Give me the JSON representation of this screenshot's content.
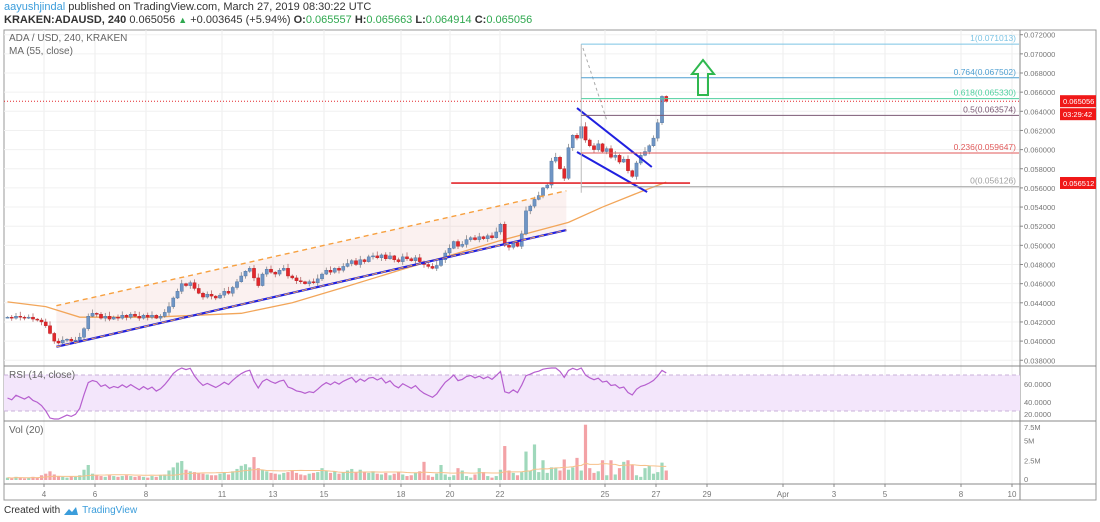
{
  "header": {
    "author": "aayushjindal",
    "published": "published on TradingView.com, March 27, 2019 08:30:22 UTC",
    "symbol": "KRAKEN:ADAUSD, 240",
    "last": "0.065056",
    "change": "+0.003645 (+5.94%)",
    "o_label": "O:",
    "o": "0.065557",
    "h_label": "H:",
    "h": "0.065663",
    "l_label": "L:",
    "l": "0.064914",
    "c_label": "C:",
    "c": "0.065056"
  },
  "legend": {
    "title": "ADA / USD, 240, KRAKEN",
    "ma": "MA (55, close)",
    "rsi": "RSI (14, close)",
    "vol": "Vol (20)"
  },
  "footer": {
    "created": "Created with",
    "brand": "TradingView"
  },
  "chart_data": {
    "type": "candlestick",
    "symbol": "ADA / USD",
    "interval": "240",
    "price_axis": {
      "range": [
        0.038,
        0.072
      ],
      "ticks": [
        "0.038000",
        "0.040000",
        "0.042000",
        "0.044000",
        "0.046000",
        "0.048000",
        "0.050000",
        "0.052000",
        "0.054000",
        "0.056000",
        "0.058000",
        "0.060000",
        "0.062000",
        "0.064000",
        "0.066000",
        "0.068000",
        "0.070000",
        "0.072000"
      ]
    },
    "time_axis": {
      "ticks": [
        "4",
        "6",
        "8",
        "11",
        "13",
        "15",
        "18",
        "20",
        "22",
        "25",
        "27",
        "29",
        "Apr",
        "3",
        "5",
        "8",
        "10"
      ]
    },
    "grid": true,
    "candles": {
      "interval": "4h",
      "close": [
        0.0425,
        0.0424,
        0.0426,
        0.0425,
        0.0424,
        0.0425,
        0.0423,
        0.0422,
        0.042,
        0.0416,
        0.0408,
        0.04,
        0.0398,
        0.0401,
        0.0402,
        0.04,
        0.0401,
        0.0404,
        0.0413,
        0.0426,
        0.0429,
        0.0428,
        0.0424,
        0.0426,
        0.0423,
        0.0425,
        0.0424,
        0.0427,
        0.0425,
        0.0428,
        0.0426,
        0.0424,
        0.0427,
        0.0425,
        0.0427,
        0.0424,
        0.0426,
        0.043,
        0.0436,
        0.0445,
        0.0452,
        0.046,
        0.0458,
        0.0461,
        0.0455,
        0.045,
        0.0446,
        0.0449,
        0.0447,
        0.0445,
        0.0448,
        0.0452,
        0.045,
        0.0456,
        0.0462,
        0.0468,
        0.0473,
        0.0476,
        0.0466,
        0.0458,
        0.047,
        0.0475,
        0.0472,
        0.047,
        0.0474,
        0.0476,
        0.0468,
        0.0466,
        0.0463,
        0.0462,
        0.046,
        0.0462,
        0.0461,
        0.0465,
        0.047,
        0.0474,
        0.0472,
        0.0476,
        0.0474,
        0.0478,
        0.0481,
        0.0484,
        0.048,
        0.0485,
        0.0483,
        0.0488,
        0.0489,
        0.0487,
        0.049,
        0.0486,
        0.0489,
        0.0485,
        0.0483,
        0.0488,
        0.0486,
        0.0484,
        0.0487,
        0.0483,
        0.048,
        0.0478,
        0.0476,
        0.0479,
        0.0485,
        0.0492,
        0.0497,
        0.0504,
        0.0499,
        0.0501,
        0.0506,
        0.0508,
        0.0506,
        0.0509,
        0.0507,
        0.051,
        0.0508,
        0.0514,
        0.0522,
        0.05,
        0.0498,
        0.0503,
        0.0499,
        0.0512,
        0.0536,
        0.0541,
        0.0548,
        0.0552,
        0.056,
        0.0563,
        0.0588,
        0.0592,
        0.058,
        0.057,
        0.0602,
        0.0615,
        0.0612,
        0.0624,
        0.061,
        0.0604,
        0.06,
        0.0606,
        0.0598,
        0.0601,
        0.0592,
        0.0594,
        0.0587,
        0.059,
        0.0578,
        0.0572,
        0.0586,
        0.0594,
        0.0598,
        0.0604,
        0.0612,
        0.0628,
        0.065557,
        0.065056
      ],
      "volume_M": [
        0.3,
        0.2,
        0.4,
        0.3,
        0.2,
        0.3,
        0.4,
        0.3,
        0.6,
        0.8,
        1.1,
        0.7,
        0.5,
        0.4,
        0.3,
        0.5,
        0.4,
        0.6,
        1.3,
        1.9,
        0.8,
        0.6,
        0.5,
        0.4,
        0.6,
        0.5,
        0.4,
        0.5,
        0.6,
        0.5,
        0.4,
        0.5,
        0.4,
        0.3,
        0.5,
        0.4,
        0.6,
        0.7,
        1.2,
        1.6,
        2.2,
        2.4,
        1.3,
        1.1,
        1.0,
        0.9,
        0.8,
        0.7,
        0.6,
        0.6,
        0.8,
        1.0,
        0.7,
        1.1,
        1.4,
        1.8,
        2.0,
        1.6,
        2.9,
        1.5,
        1.3,
        1.1,
        0.9,
        0.8,
        0.7,
        0.9,
        1.0,
        1.2,
        0.9,
        0.7,
        0.6,
        0.8,
        0.9,
        1.0,
        1.5,
        1.2,
        0.9,
        1.1,
        0.8,
        1.0,
        1.2,
        1.4,
        1.0,
        1.3,
        1.0,
        0.9,
        1.1,
        0.8,
        0.7,
        0.9,
        0.6,
        0.8,
        1.0,
        0.7,
        0.5,
        0.6,
        0.9,
        1.1,
        2.3,
        0.6,
        0.4,
        0.8,
        1.9,
        0.7,
        0.4,
        0.6,
        1.5,
        1.2,
        0.5,
        0.3,
        0.7,
        1.5,
        1.0,
        0.5,
        0.3,
        0.5,
        1.3,
        4.3,
        1.2,
        0.9,
        0.6,
        1.0,
        3.6,
        1.2,
        4.5,
        1.0,
        2.5,
        0.9,
        1.6,
        1.5,
        1.2,
        2.6,
        1.3,
        1.6,
        2.8,
        1.2,
        7.0,
        1.5,
        0.9,
        1.1,
        2.5,
        0.6,
        2.5,
        0.7,
        1.5,
        2.3,
        2.5,
        1.9,
        0.6,
        0.4,
        1.5,
        1.8,
        0.8,
        1.0,
        2.2,
        1.2
      ]
    },
    "last_candle": {
      "open": 0.065557,
      "high": 0.065663,
      "low": 0.064914,
      "close": 0.065056
    },
    "ma55": [
      [
        0,
        0.0441
      ],
      [
        9,
        0.0436
      ],
      [
        17,
        0.0425
      ],
      [
        34,
        0.0425
      ],
      [
        55,
        0.0429
      ],
      [
        67,
        0.044
      ],
      [
        79,
        0.0456
      ],
      [
        93,
        0.0475
      ],
      [
        116,
        0.0505
      ],
      [
        132,
        0.0524
      ],
      [
        140,
        0.054
      ],
      [
        149,
        0.0556
      ],
      [
        155,
        0.0566
      ]
    ],
    "rsi_axis": {
      "ticks": [
        "60.0000",
        "40.0000",
        "20.0000"
      ],
      "band": [
        30,
        70
      ]
    },
    "volume_axis": {
      "ticks": [
        "7.5M",
        "5M",
        "2.5M",
        "0"
      ]
    },
    "price_labels": {
      "last": "0.065056",
      "countdown": "03:29:42",
      "support": "0.056512"
    },
    "fib_levels": [
      {
        "label": "1(0.071013)",
        "price": 0.071013,
        "color": "#7cc4e4"
      },
      {
        "label": "0.764(0.067502)",
        "price": 0.067502,
        "color": "#4f9fd1"
      },
      {
        "label": "0.618(0.065330)",
        "price": 0.06533,
        "color": "#4fcf9f"
      },
      {
        "label": "0.5(0.063574)",
        "price": 0.063574,
        "color": "#7c5a74"
      },
      {
        "label": "0.236(0.059647)",
        "price": 0.059647,
        "color": "#e05a5a"
      },
      {
        "label": "0(0.056126)",
        "price": 0.056126,
        "color": "#a0a0a0"
      }
    ],
    "drawings": {
      "rising_channel_support": [
        [
          11.5,
          0.0394
        ],
        [
          131.5,
          0.0516
        ]
      ],
      "rising_channel_resistance": [
        [
          11.5,
          0.0437
        ],
        [
          131.5,
          0.0557
        ]
      ],
      "flag_upper": [
        [
          134,
          0.06434
        ],
        [
          151.6,
          0.05818
        ]
      ],
      "flag_lower": [
        [
          134,
          0.05975
        ],
        [
          150.5,
          0.05557
        ]
      ],
      "support_line": {
        "price": 0.05651,
        "from_bar": 104.4,
        "to_bar": 160.6
      }
    },
    "colors": {
      "bull": "#6f95c5",
      "bear": "#e3272b",
      "ma": "#f2a65a",
      "rsi": "#b65fcf",
      "vol_up": "#9fd8bb",
      "vol_down": "#f3a2a6",
      "price_line": "#e3272b",
      "arrow": "#2fb84f"
    }
  }
}
